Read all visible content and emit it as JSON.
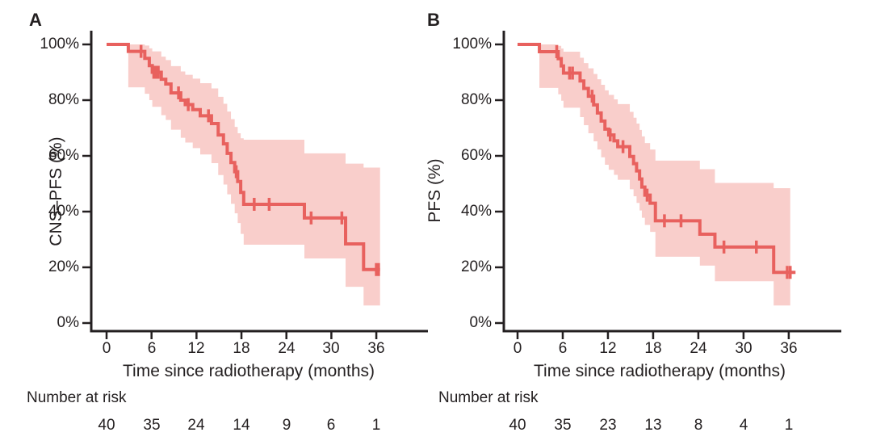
{
  "figure": {
    "background": "#ffffff",
    "text_color": "#231f20",
    "axis_color": "#231f20",
    "xlabel": "Time since radiotherapy (months)",
    "risk_label": "Number at risk",
    "y_tick_labels": [
      "100%",
      "80%",
      "60%",
      "40%",
      "20%",
      "0%"
    ],
    "x_tick_labels": [
      "0",
      "6",
      "12",
      "18",
      "24",
      "30",
      "36"
    ]
  },
  "chart_data": [
    {
      "panel": "A",
      "type": "line",
      "subtype": "kaplan_meier_step",
      "title": "",
      "xlabel": "Time since radiotherapy (months)",
      "ylabel": "CNS–PFS (%)",
      "xlim": [
        0,
        40
      ],
      "ylim": [
        0,
        100
      ],
      "x_ticks": [
        0,
        6,
        12,
        18,
        24,
        30,
        36
      ],
      "y_ticks_pct": [
        100,
        80,
        60,
        40,
        20,
        0
      ],
      "grid": false,
      "legend": false,
      "line_color": "#e8615e",
      "band_color": "#f9cecb",
      "series": [
        {
          "name": "CNS-PFS",
          "end_t": 36.5,
          "band_end_t": 36.5,
          "points": [
            [
              0,
              100
            ],
            [
              2.9,
              97.5
            ],
            [
              5.1,
              95.0
            ],
            [
              5.7,
              92.4
            ],
            [
              6.1,
              90.0
            ],
            [
              7.3,
              87.5
            ],
            [
              7.9,
              85.8
            ],
            [
              8.6,
              82.6
            ],
            [
              9.9,
              80.0
            ],
            [
              10.5,
              78.4
            ],
            [
              11.5,
              76.6
            ],
            [
              12.5,
              74.4
            ],
            [
              14.0,
              71.6
            ],
            [
              14.9,
              67.5
            ],
            [
              15.6,
              64.3
            ],
            [
              16.1,
              60.9
            ],
            [
              16.6,
              57.6
            ],
            [
              17.1,
              54.3
            ],
            [
              17.5,
              50.8
            ],
            [
              17.9,
              46.9
            ],
            [
              18.3,
              42.6
            ],
            [
              26.4,
              37.7
            ],
            [
              31.9,
              28.4
            ],
            [
              34.3,
              19.2
            ]
          ],
          "censors": [
            [
              4.6,
              97.5
            ],
            [
              6.3,
              90.0
            ],
            [
              6.6,
              90.0
            ],
            [
              6.9,
              90.0
            ],
            [
              9.6,
              82.6
            ],
            [
              10.9,
              78.4
            ],
            [
              13.6,
              74.4
            ],
            [
              17.3,
              54.3
            ],
            [
              19.7,
              42.6
            ],
            [
              21.7,
              42.6
            ],
            [
              27.3,
              37.7
            ],
            [
              31.4,
              37.7
            ],
            [
              36.0,
              19.2
            ],
            [
              36.3,
              19.2
            ]
          ],
          "ci": [
            [
              2.9,
              100,
              84.6
            ],
            [
              5.1,
              99.6,
              82.3
            ],
            [
              5.7,
              98.6,
              80.0
            ],
            [
              6.1,
              97.5,
              77.6
            ],
            [
              7.3,
              95.6,
              74.6
            ],
            [
              7.9,
              94.4,
              72.9
            ],
            [
              8.6,
              92.2,
              69.4
            ],
            [
              9.9,
              90.3,
              66.5
            ],
            [
              10.5,
              89.1,
              64.8
            ],
            [
              11.5,
              87.7,
              62.8
            ],
            [
              12.5,
              86.1,
              60.5
            ],
            [
              14.0,
              84.2,
              57.4
            ],
            [
              14.9,
              81.2,
              53.1
            ],
            [
              15.6,
              78.7,
              49.7
            ],
            [
              16.1,
              75.9,
              46.2
            ],
            [
              16.6,
              73.2,
              42.8
            ],
            [
              17.1,
              70.4,
              39.4
            ],
            [
              17.5,
              68.1,
              35.9
            ],
            [
              17.9,
              66.3,
              32.0
            ],
            [
              18.3,
              65.8,
              28.1
            ],
            [
              26.4,
              60.9,
              23.2
            ],
            [
              31.9,
              57.2,
              13.0
            ],
            [
              34.3,
              55.8,
              6.3
            ]
          ]
        }
      ],
      "risk_table": {
        "label": "Number at risk",
        "times": [
          0,
          6,
          12,
          18,
          24,
          30,
          36
        ],
        "values": [
          40,
          35,
          24,
          14,
          9,
          6,
          1
        ]
      }
    },
    {
      "panel": "B",
      "type": "line",
      "subtype": "kaplan_meier_step",
      "title": "",
      "xlabel": "Time since radiotherapy (months)",
      "ylabel": "PFS (%)",
      "xlim": [
        0,
        40
      ],
      "ylim": [
        0,
        100
      ],
      "x_ticks": [
        0,
        6,
        12,
        18,
        24,
        30,
        36
      ],
      "y_ticks_pct": [
        100,
        80,
        60,
        40,
        20,
        0
      ],
      "grid": false,
      "legend": false,
      "line_color": "#e8615e",
      "band_color": "#f9cecb",
      "series": [
        {
          "name": "PFS",
          "end_t": 36.9,
          "band_end_t": 36.2,
          "points": [
            [
              0,
              100
            ],
            [
              2.9,
              97.4
            ],
            [
              5.4,
              94.9
            ],
            [
              5.8,
              92.3
            ],
            [
              6.1,
              89.7
            ],
            [
              8.3,
              86.9
            ],
            [
              8.8,
              84.2
            ],
            [
              9.4,
              81.4
            ],
            [
              10.1,
              78.3
            ],
            [
              10.6,
              75.4
            ],
            [
              11.1,
              72.5
            ],
            [
              11.6,
              69.6
            ],
            [
              12.1,
              67.5
            ],
            [
              12.8,
              65.4
            ],
            [
              13.3,
              63.3
            ],
            [
              14.9,
              59.8
            ],
            [
              15.4,
              57.2
            ],
            [
              15.8,
              54.6
            ],
            [
              16.2,
              51.7
            ],
            [
              16.5,
              48.8
            ],
            [
              16.9,
              45.9
            ],
            [
              17.6,
              43.0
            ],
            [
              18.3,
              36.7
            ],
            [
              24.2,
              31.9
            ],
            [
              26.2,
              27.3
            ],
            [
              34.0,
              18.2
            ]
          ],
          "censors": [
            [
              5.2,
              97.4
            ],
            [
              6.9,
              89.7
            ],
            [
              7.3,
              89.7
            ],
            [
              9.9,
              81.4
            ],
            [
              12.3,
              67.5
            ],
            [
              14.0,
              63.3
            ],
            [
              17.2,
              45.9
            ],
            [
              19.5,
              36.7
            ],
            [
              21.7,
              36.7
            ],
            [
              27.4,
              27.3
            ],
            [
              31.7,
              27.3
            ],
            [
              35.8,
              18.2
            ],
            [
              36.2,
              18.2
            ]
          ],
          "ci": [
            [
              2.9,
              100,
              84.4
            ],
            [
              5.4,
              99.5,
              82.1
            ],
            [
              5.8,
              98.5,
              79.8
            ],
            [
              6.1,
              97.4,
              77.3
            ],
            [
              8.3,
              95.2,
              73.9
            ],
            [
              8.8,
              93.3,
              71.0
            ],
            [
              9.4,
              91.4,
              68.1
            ],
            [
              10.1,
              89.4,
              65.2
            ],
            [
              10.6,
              87.5,
              62.3
            ],
            [
              11.1,
              85.5,
              59.5
            ],
            [
              11.6,
              83.5,
              56.8
            ],
            [
              12.1,
              81.9,
              55.0
            ],
            [
              12.8,
              80.3,
              53.2
            ],
            [
              13.3,
              78.6,
              51.4
            ],
            [
              14.9,
              75.8,
              48.0
            ],
            [
              15.4,
              73.7,
              45.5
            ],
            [
              15.8,
              71.6,
              43.1
            ],
            [
              16.2,
              69.3,
              40.4
            ],
            [
              16.5,
              67.0,
              37.8
            ],
            [
              16.9,
              64.6,
              35.2
            ],
            [
              17.6,
              62.3,
              32.7
            ],
            [
              18.3,
              58.3,
              23.8
            ],
            [
              24.2,
              55.2,
              20.6
            ],
            [
              26.2,
              50.3,
              15.0
            ],
            [
              34.0,
              48.4,
              6.3
            ]
          ]
        }
      ],
      "risk_table": {
        "label": "Number at risk",
        "times": [
          0,
          6,
          12,
          18,
          24,
          30,
          36
        ],
        "values": [
          40,
          35,
          23,
          13,
          8,
          4,
          1
        ]
      }
    }
  ]
}
